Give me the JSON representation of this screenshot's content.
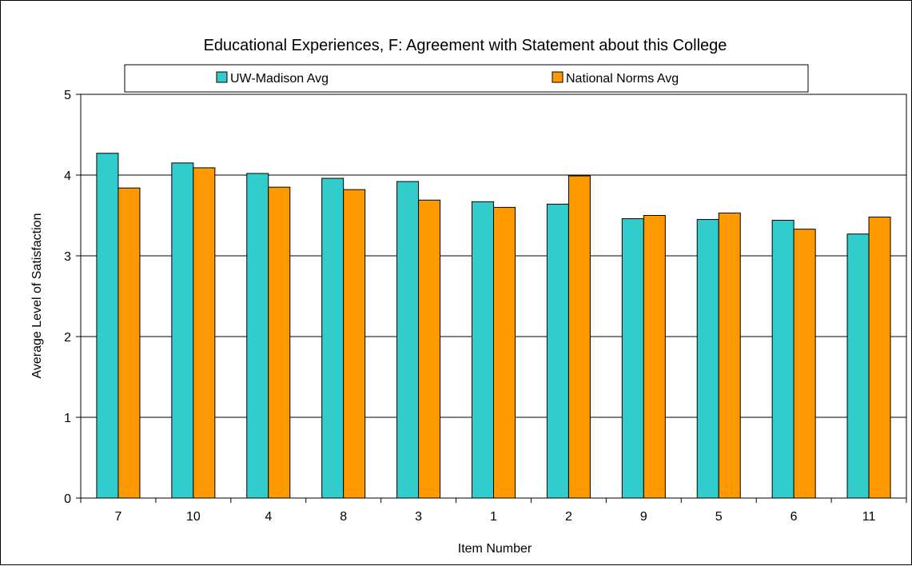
{
  "chart_data": {
    "type": "bar",
    "title": "Educational Experiences, F: Agreement with Statement about this College",
    "xlabel": "Item Number",
    "ylabel": "Average Level of Satisfaction",
    "categories": [
      "7",
      "10",
      "4",
      "8",
      "3",
      "1",
      "2",
      "9",
      "5",
      "6",
      "11"
    ],
    "series": [
      {
        "name": "UW-Madison Avg",
        "color": "#33CCCC",
        "values": [
          4.27,
          4.15,
          4.02,
          3.96,
          3.92,
          3.67,
          3.64,
          3.46,
          3.45,
          3.44,
          3.27
        ]
      },
      {
        "name": "National Norms Avg",
        "color": "#FF9900",
        "values": [
          3.84,
          4.09,
          3.85,
          3.82,
          3.69,
          3.6,
          3.99,
          3.5,
          3.53,
          3.33,
          3.48
        ]
      }
    ],
    "ylim": [
      0,
      5
    ],
    "yticks": [
      0,
      1,
      2,
      3,
      4,
      5
    ],
    "grid": true,
    "legend_position": "top"
  }
}
